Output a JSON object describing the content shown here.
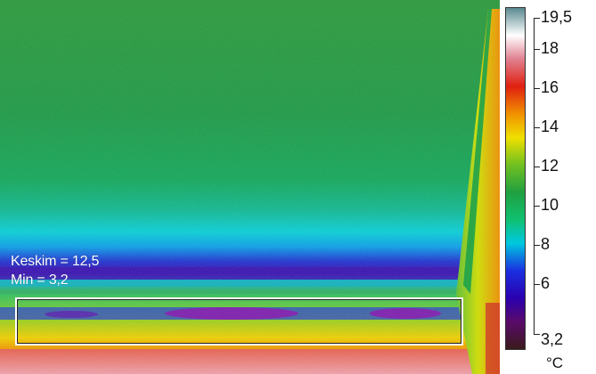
{
  "overlay": {
    "average_label": "Keskim = 12,5",
    "min_label": "Min = 3,2"
  },
  "scale": {
    "max_label": "19,5",
    "min_label": "3,2",
    "unit": "°C",
    "ticks": [
      "18",
      "16",
      "14",
      "12",
      "10",
      "8",
      "6"
    ],
    "palette": [
      "#3a1a1a",
      "#5a0a6a",
      "#2a00b0",
      "#1a30e0",
      "#00c8e0",
      "#10c070",
      "#20a040",
      "#70c020",
      "#f0e000",
      "#f09000",
      "#e02010",
      "#e08090",
      "#ffffff",
      "#5a8a90"
    ]
  }
}
